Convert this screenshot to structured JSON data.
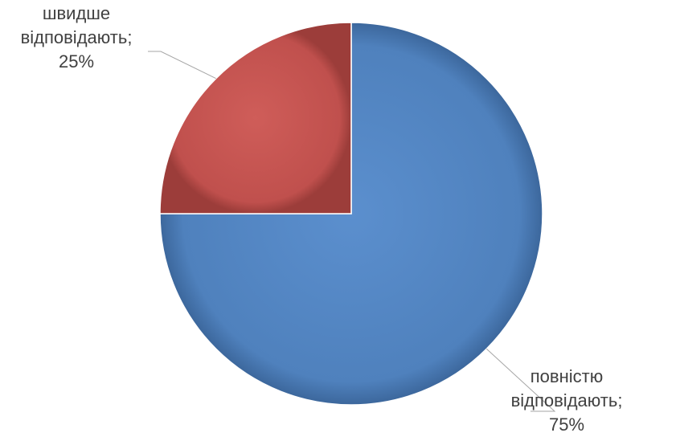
{
  "chart_data": {
    "type": "pie",
    "title": "",
    "start_angle_deg": 0,
    "direction": "clockwise",
    "slices": [
      {
        "category": "повністю відповідають",
        "line1": "повністю",
        "line2": "відповідають;",
        "value": 75,
        "value_label": "75%",
        "color": "#4F81BD"
      },
      {
        "category": "швидше відповідають",
        "line1": "швидше",
        "line2": "відповідають;",
        "value": 25,
        "value_label": "25%",
        "color": "#C0504D"
      }
    ],
    "legend": "none",
    "data_labels": "outside-with-leader-lines"
  }
}
